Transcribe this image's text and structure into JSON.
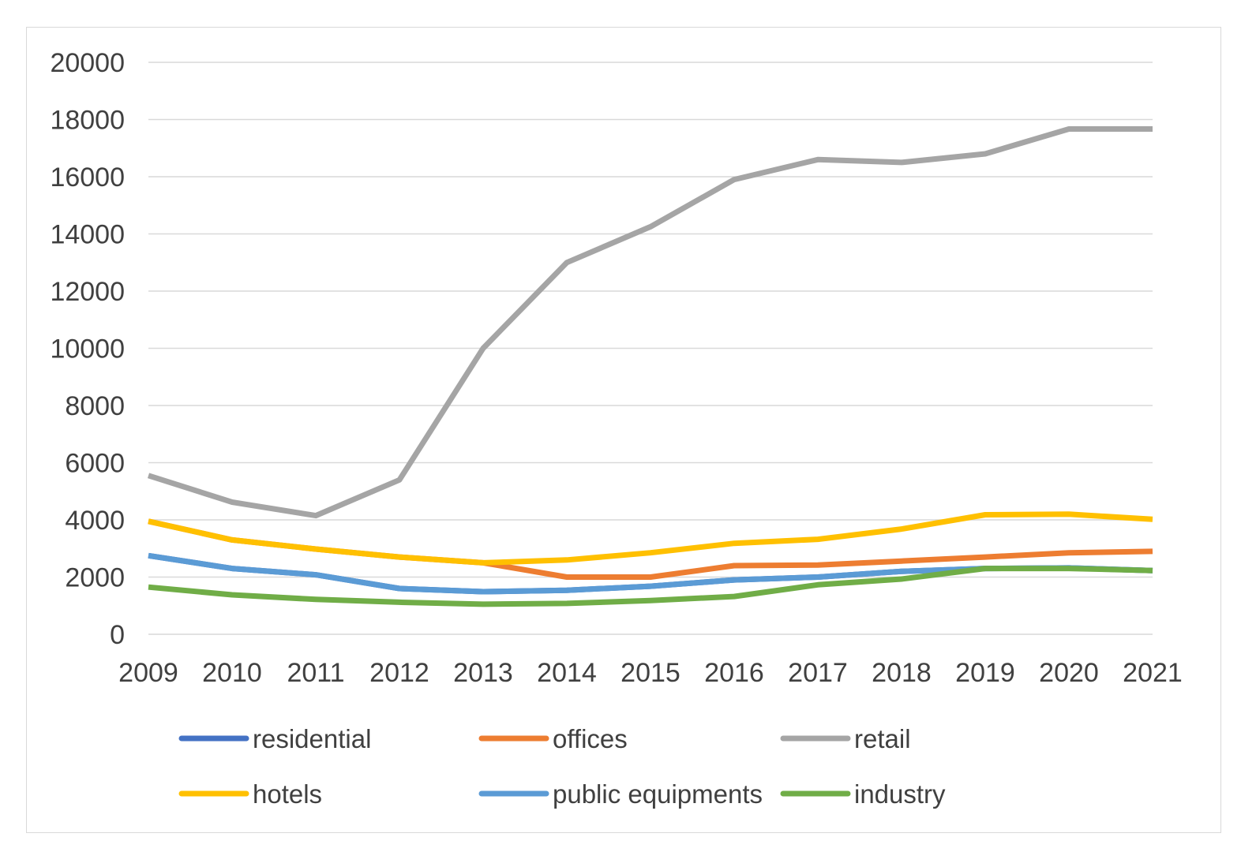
{
  "chart_data": {
    "type": "line",
    "title": "",
    "xlabel": "",
    "ylabel": "",
    "x": [
      "2009",
      "2010",
      "2011",
      "2012",
      "2013",
      "2014",
      "2015",
      "2016",
      "2017",
      "2018",
      "2019",
      "2020",
      "2021"
    ],
    "ylim": [
      0,
      20000
    ],
    "yticks": [
      0,
      2000,
      4000,
      6000,
      8000,
      10000,
      12000,
      14000,
      16000,
      18000,
      20000
    ],
    "yticks_labels": [
      "0",
      "2000",
      "4000",
      "6000",
      "8000",
      "10000",
      "12000",
      "14000",
      "16000",
      "18000",
      "20000"
    ],
    "grid": true,
    "legend_position": "bottom",
    "series": [
      {
        "name": "residential",
        "color": "#4472c4",
        "values": [
          2750,
          2300,
          2080,
          1600,
          1490,
          1540,
          1680,
          1900,
          2000,
          2200,
          2300,
          2320,
          2230
        ]
      },
      {
        "name": "offices",
        "color": "#ed7d31",
        "values": [
          3950,
          3300,
          2980,
          2700,
          2500,
          2000,
          2000,
          2400,
          2420,
          2560,
          2700,
          2850,
          2900
        ]
      },
      {
        "name": "retail",
        "color": "#a5a5a5",
        "values": [
          5550,
          4620,
          4150,
          5400,
          10000,
          13000,
          14250,
          15900,
          16600,
          16500,
          16800,
          17670,
          17670
        ]
      },
      {
        "name": "hotels",
        "color": "#ffc000",
        "values": [
          3950,
          3300,
          2980,
          2700,
          2500,
          2600,
          2850,
          3180,
          3320,
          3680,
          4180,
          4200,
          4020
        ]
      },
      {
        "name": "public equipments",
        "color": "#5b9bd5",
        "values": [
          2750,
          2300,
          2080,
          1600,
          1490,
          1540,
          1680,
          1900,
          2000,
          2200,
          2300,
          2320,
          2230
        ]
      },
      {
        "name": "industry",
        "color": "#70ad47",
        "values": [
          1650,
          1380,
          1220,
          1120,
          1050,
          1080,
          1180,
          1320,
          1730,
          1930,
          2300,
          2300,
          2230
        ]
      }
    ]
  }
}
